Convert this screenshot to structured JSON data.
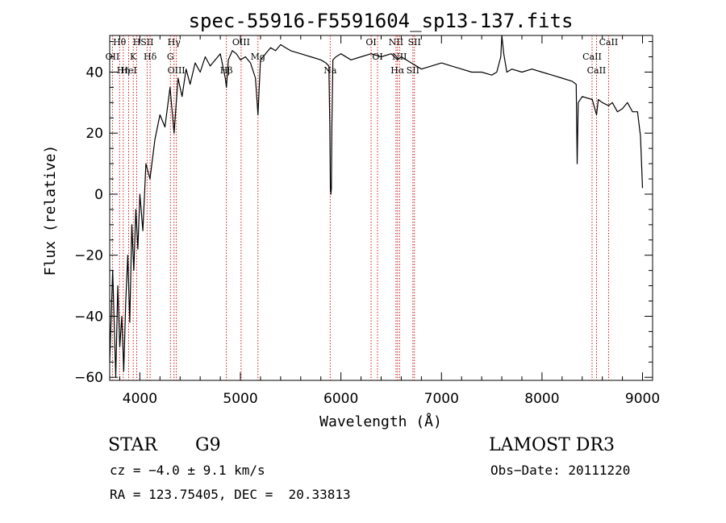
{
  "colors": {
    "spectrum": "#000000",
    "lines": "#cc0000",
    "axes": "#000000",
    "background": "#ffffff"
  },
  "chart_data": {
    "type": "line",
    "title": "spec-55916-F5591604_sp13-137.fits",
    "xlabel": "Wavelength (Å)",
    "ylabel": "Flux (relative)",
    "xlim": [
      3700,
      9100
    ],
    "ylim": [
      -61,
      52
    ],
    "xticks": [
      4000,
      5000,
      6000,
      7000,
      8000,
      9000
    ],
    "yticks": [
      -60,
      -40,
      -20,
      0,
      20,
      40
    ],
    "ytick_labels": [
      "−60",
      "−40",
      "−20",
      "0",
      "20",
      "40"
    ],
    "series": [
      {
        "name": "flux",
        "x": [
          3700,
          3730,
          3760,
          3780,
          3800,
          3820,
          3840,
          3860,
          3880,
          3900,
          3920,
          3940,
          3960,
          3980,
          4000,
          4030,
          4060,
          4100,
          4150,
          4200,
          4250,
          4300,
          4340,
          4380,
          4420,
          4460,
          4500,
          4550,
          4600,
          4650,
          4700,
          4750,
          4800,
          4850,
          4861,
          4880,
          4920,
          4960,
          5000,
          5050,
          5100,
          5150,
          5175,
          5200,
          5250,
          5300,
          5350,
          5400,
          5450,
          5500,
          5600,
          5700,
          5800,
          5850,
          5880,
          5890,
          5895,
          5900,
          5905,
          5910,
          5920,
          5950,
          6000,
          6100,
          6200,
          6300,
          6400,
          6500,
          6563,
          6600,
          6700,
          6800,
          6900,
          7000,
          7100,
          7200,
          7300,
          7400,
          7500,
          7550,
          7590,
          7600,
          7620,
          7650,
          7700,
          7800,
          7900,
          8000,
          8100,
          8200,
          8300,
          8340,
          8350,
          8360,
          8400,
          8500,
          8542,
          8560,
          8600,
          8662,
          8700,
          8750,
          8800,
          8850,
          8900,
          8950,
          8980,
          9000
        ],
        "y": [
          -55,
          -25,
          -60,
          -30,
          -50,
          -40,
          -58,
          -35,
          -20,
          -42,
          -10,
          -25,
          -5,
          -18,
          0,
          -12,
          10,
          5,
          18,
          26,
          22,
          35,
          20,
          38,
          32,
          41,
          36,
          43,
          40,
          45,
          42,
          44,
          46,
          38,
          35,
          44,
          47,
          46,
          44,
          45,
          43,
          38,
          26,
          44,
          46,
          48,
          47,
          49,
          48,
          47,
          46,
          45,
          44,
          43,
          42,
          22,
          2,
          0,
          2,
          22,
          44,
          45,
          46,
          44,
          45,
          46,
          45,
          46,
          44,
          45,
          43,
          41,
          42,
          43,
          42,
          41,
          40,
          40,
          39,
          40,
          45,
          52,
          46,
          40,
          41,
          40,
          41,
          40,
          39,
          38,
          37,
          36,
          10,
          30,
          32,
          31,
          26,
          31,
          30,
          29,
          30,
          27,
          28,
          30,
          27,
          27,
          19,
          2
        ]
      }
    ],
    "line_markers": [
      {
        "label": "Hθ",
        "wavelength": 3798
      },
      {
        "label": "OII",
        "wavelength": 3727
      },
      {
        "label": "Hη",
        "wavelength": 3835
      },
      {
        "label": "H",
        "wavelength": 3969
      },
      {
        "label": "K",
        "wavelength": 3934
      },
      {
        "label": "HeI",
        "wavelength": 3889
      },
      {
        "label": "SII",
        "wavelength": 4072
      },
      {
        "label": "Hδ",
        "wavelength": 4102
      },
      {
        "label": "OIII",
        "wavelength": 4363
      },
      {
        "label": "Hγ",
        "wavelength": 4340
      },
      {
        "label": "G",
        "wavelength": 4304
      },
      {
        "label": "Hβ",
        "wavelength": 4861
      },
      {
        "label": "OIII",
        "wavelength": 5007
      },
      {
        "label": "Mg",
        "wavelength": 5175
      },
      {
        "label": "Na",
        "wavelength": 5893
      },
      {
        "label": "OI",
        "wavelength": 6300
      },
      {
        "label": "OI",
        "wavelength": 6364
      },
      {
        "label": "Hα",
        "wavelength": 6563
      },
      {
        "label": "NII",
        "wavelength": 6548
      },
      {
        "label": "NII",
        "wavelength": 6583
      },
      {
        "label": "SII",
        "wavelength": 6716
      },
      {
        "label": "SII",
        "wavelength": 6731
      },
      {
        "label": "CaII",
        "wavelength": 8498
      },
      {
        "label": "CaII",
        "wavelength": 8542
      },
      {
        "label": "CaII",
        "wavelength": 8662
      }
    ]
  },
  "info": {
    "object_class": "STAR",
    "subclass": "G9",
    "survey": "LAMOST DR3",
    "velocity": "cz = −4.0 ± 9.1 km/s",
    "obs_date": "Obs−Date: 20111220",
    "coords": "RA = 123.75405, DEC =  20.33813"
  }
}
